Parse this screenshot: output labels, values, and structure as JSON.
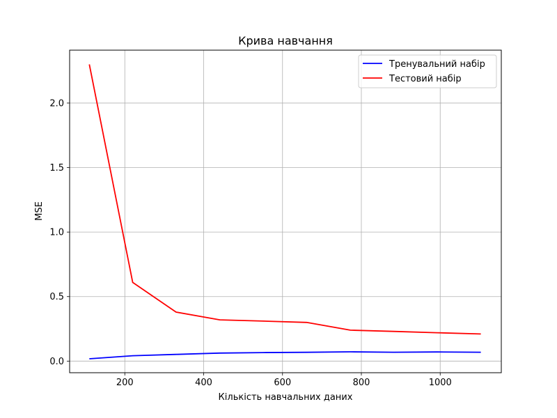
{
  "chart_data": {
    "type": "line",
    "title": "Крива навчання",
    "xlabel": "Кількість навчальних даних",
    "ylabel": "MSE",
    "xlim": [
      60,
      1155
    ],
    "ylim": [
      -0.09,
      2.41
    ],
    "xticks": [
      200,
      400,
      600,
      800,
      1000
    ],
    "yticks": [
      0.0,
      0.5,
      1.0,
      1.5,
      2.0
    ],
    "xtick_labels": [
      "200",
      "400",
      "600",
      "800",
      "1000"
    ],
    "ytick_labels": [
      "0.0",
      "0.5",
      "1.0",
      "1.5",
      "2.0"
    ],
    "grid": true,
    "legend_position": "top-right",
    "series": [
      {
        "name": "Тренувальний набір",
        "color": "#0000ff",
        "x": [
          110,
          220,
          330,
          441,
          551,
          661,
          772,
          882,
          992,
          1103
        ],
        "y": [
          0.018,
          0.042,
          0.052,
          0.062,
          0.066,
          0.068,
          0.072,
          0.069,
          0.071,
          0.069
        ]
      },
      {
        "name": "Тестовий набір",
        "color": "#ff0000",
        "x": [
          110,
          220,
          330,
          441,
          551,
          661,
          772,
          882,
          992,
          1103
        ],
        "y": [
          2.3,
          0.61,
          0.38,
          0.32,
          0.31,
          0.3,
          0.24,
          0.23,
          0.22,
          0.21
        ]
      }
    ]
  }
}
